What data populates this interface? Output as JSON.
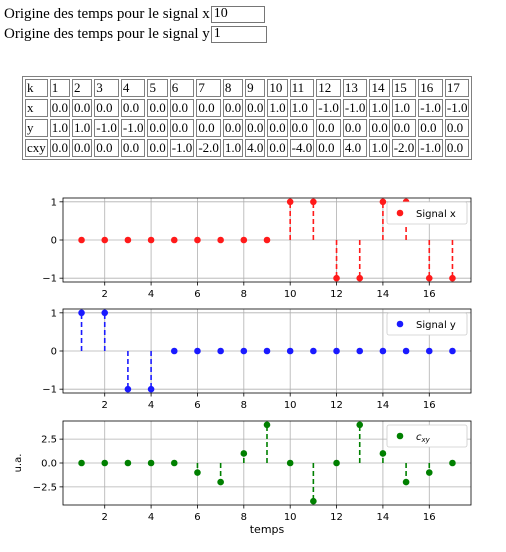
{
  "inputs": {
    "x_label": "Origine des temps pour le signal x",
    "x_value": "10",
    "y_label": "Origine des temps pour le signal y",
    "y_value": "1"
  },
  "table": {
    "rows": [
      {
        "label": "k",
        "values": [
          "1",
          "2",
          "3",
          "4",
          "5",
          "6",
          "7",
          "8",
          "9",
          "10",
          "11",
          "12",
          "13",
          "14",
          "15",
          "16",
          "17"
        ]
      },
      {
        "label": "x",
        "values": [
          "0.0",
          "0.0",
          "0.0",
          "0.0",
          "0.0",
          "0.0",
          "0.0",
          "0.0",
          "0.0",
          "1.0",
          "1.0",
          "-1.0",
          "-1.0",
          "1.0",
          "1.0",
          "-1.0",
          "-1.0"
        ]
      },
      {
        "label": "y",
        "values": [
          "1.0",
          "1.0",
          "-1.0",
          "-1.0",
          "0.0",
          "0.0",
          "0.0",
          "0.0",
          "0.0",
          "0.0",
          "0.0",
          "0.0",
          "0.0",
          "0.0",
          "0.0",
          "0.0",
          "0.0"
        ]
      },
      {
        "label": "cxy",
        "values": [
          "0.0",
          "0.0",
          "0.0",
          "0.0",
          "0.0",
          "-1.0",
          "-2.0",
          "1.0",
          "4.0",
          "0.0",
          "-4.0",
          "0.0",
          "4.0",
          "1.0",
          "-2.0",
          "-1.0",
          "0.0"
        ]
      }
    ]
  },
  "chart_data": [
    {
      "type": "scatter",
      "style": "stem",
      "legend": "Signal x",
      "legend_position": "top-right",
      "color": "#ff1a1a",
      "x": [
        1,
        2,
        3,
        4,
        5,
        6,
        7,
        8,
        9,
        10,
        11,
        12,
        13,
        14,
        15,
        16,
        17
      ],
      "y": [
        0,
        0,
        0,
        0,
        0,
        0,
        0,
        0,
        0,
        1,
        1,
        -1,
        -1,
        1,
        1,
        -1,
        -1
      ],
      "xticks": [
        "2",
        "4",
        "6",
        "8",
        "10",
        "12",
        "14",
        "16"
      ],
      "yticks": [
        "−1",
        "0",
        "1"
      ],
      "ylim": [
        -1.1,
        1.1
      ],
      "xlim": [
        0.2,
        17.8
      ],
      "grid": true
    },
    {
      "type": "scatter",
      "style": "stem",
      "legend": "Signal y",
      "legend_position": "top-right",
      "color": "#1a1aff",
      "x": [
        1,
        2,
        3,
        4,
        5,
        6,
        7,
        8,
        9,
        10,
        11,
        12,
        13,
        14,
        15,
        16,
        17
      ],
      "y": [
        1,
        1,
        -1,
        -1,
        0,
        0,
        0,
        0,
        0,
        0,
        0,
        0,
        0,
        0,
        0,
        0,
        0
      ],
      "xticks": [
        "2",
        "4",
        "6",
        "8",
        "10",
        "12",
        "14",
        "16"
      ],
      "yticks": [
        "−1",
        "0",
        "1"
      ],
      "ylim": [
        -1.1,
        1.1
      ],
      "xlim": [
        0.2,
        17.8
      ],
      "grid": true
    },
    {
      "type": "scatter",
      "style": "stem",
      "legend": "c",
      "legend_sub": "xy",
      "legend_position": "top-right",
      "color": "#008000",
      "x": [
        1,
        2,
        3,
        4,
        5,
        6,
        7,
        8,
        9,
        10,
        11,
        12,
        13,
        14,
        15,
        16,
        17
      ],
      "y": [
        0,
        0,
        0,
        0,
        0,
        -1,
        -2,
        1,
        4,
        0,
        -4,
        0,
        4,
        1,
        -2,
        -1,
        0
      ],
      "xticks": [
        "2",
        "4",
        "6",
        "8",
        "10",
        "12",
        "14",
        "16"
      ],
      "yticks": [
        "−2.5",
        "0.0",
        "2.5"
      ],
      "yticks_values": [
        -2.5,
        0,
        2.5
      ],
      "ylim": [
        -4.4,
        4.4
      ],
      "xlim": [
        0.2,
        17.8
      ],
      "ylabel": "u.a.",
      "xlabel": "temps",
      "grid": true
    }
  ]
}
